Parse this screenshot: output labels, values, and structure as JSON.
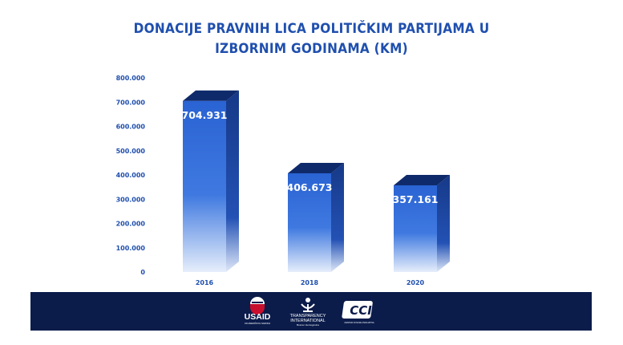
{
  "chart_data": {
    "type": "bar",
    "title_lines": [
      "DONACIJE PRAVNIH LICA POLITIČKIM PARTIJAMA U",
      "IZBORNIM GODINAMA (KM)"
    ],
    "categories": [
      "2016",
      "2018",
      "2020"
    ],
    "values": [
      704931,
      406673,
      357161
    ],
    "data_labels": [
      "704.931",
      "406.673",
      "357.161"
    ],
    "yticks": [
      0,
      100000,
      200000,
      300000,
      400000,
      500000,
      600000,
      700000,
      800000
    ],
    "ytick_labels": [
      "0",
      "100.000",
      "200.000",
      "300.000",
      "400.000",
      "500.000",
      "600.000",
      "700.000",
      "800.000"
    ],
    "ylim": [
      0,
      800000
    ],
    "grid": false,
    "bar_style": "3d",
    "colors": {
      "title": "#1f4fae",
      "axis_text": "#1f4fae",
      "bar_top": "#2a63d3",
      "bar_bottom": "#e6eefb",
      "bar_side": "#163987",
      "bar_cap": "#0f2a6b",
      "label": "#ffffff"
    }
  },
  "footer": {
    "background": "#0b1c4b",
    "logos": {
      "usaid": {
        "icon": "usaid-seal",
        "text": "USAID",
        "small_text": "OD AMERIČKOG NARODA"
      },
      "ti": {
        "icon": "ti-figure",
        "text_line1": "TRANSPARENCY",
        "text_line2": "INTERNATIONAL",
        "small_text": "Bosna i Hercegovina"
      },
      "cci": {
        "icon": "cci-wordmark",
        "text": "CCI",
        "small_text": "CENTAR CIVILNIH INICIJATIVA"
      }
    }
  }
}
